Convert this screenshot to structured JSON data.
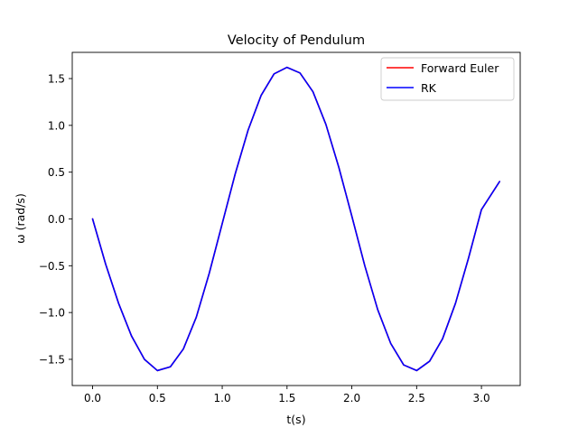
{
  "chart_data": {
    "type": "line",
    "title": "Velocity of Pendulum",
    "xlabel": "t(s)",
    "ylabel": "ω (rad/s)",
    "xlim": [
      -0.157,
      3.299
    ],
    "ylim": [
      -1.78,
      1.78
    ],
    "xticks": [
      0.0,
      0.5,
      1.0,
      1.5,
      2.0,
      2.5,
      3.0
    ],
    "xtick_labels": [
      "0.0",
      "0.5",
      "1.0",
      "1.5",
      "2.0",
      "2.5",
      "3.0"
    ],
    "yticks": [
      -1.5,
      -1.0,
      -0.5,
      0.0,
      0.5,
      1.0,
      1.5
    ],
    "ytick_labels": [
      "−1.5",
      "−1.0",
      "−0.5",
      "0.0",
      "0.5",
      "1.0",
      "1.5"
    ],
    "grid": false,
    "legend_position": "top-right",
    "x": [
      0.0,
      0.1,
      0.2,
      0.3,
      0.4,
      0.5,
      0.6,
      0.7,
      0.8,
      0.9,
      1.0,
      1.1,
      1.2,
      1.3,
      1.4,
      1.5,
      1.6,
      1.7,
      1.8,
      1.9,
      2.0,
      2.1,
      2.2,
      2.3,
      2.4,
      2.5,
      2.6,
      2.7,
      2.8,
      2.9,
      3.0,
      3.14
    ],
    "series": [
      {
        "name": "Forward Euler",
        "color": "#ff0000",
        "values": [
          0.0,
          -0.48,
          -0.9,
          -1.25,
          -1.5,
          -1.62,
          -1.58,
          -1.39,
          -1.05,
          -0.58,
          -0.05,
          0.48,
          0.95,
          1.32,
          1.55,
          1.62,
          1.56,
          1.36,
          1.01,
          0.55,
          0.03,
          -0.5,
          -0.97,
          -1.33,
          -1.56,
          -1.62,
          -1.52,
          -1.28,
          -0.9,
          -0.42,
          0.1,
          0.4
        ]
      },
      {
        "name": "RK",
        "color": "#0000ff",
        "values": [
          0.0,
          -0.48,
          -0.9,
          -1.25,
          -1.5,
          -1.62,
          -1.58,
          -1.39,
          -1.05,
          -0.58,
          -0.05,
          0.48,
          0.95,
          1.32,
          1.55,
          1.62,
          1.56,
          1.36,
          1.01,
          0.55,
          0.03,
          -0.5,
          -0.97,
          -1.33,
          -1.56,
          -1.62,
          -1.52,
          -1.28,
          -0.9,
          -0.42,
          0.1,
          0.4
        ]
      }
    ]
  }
}
